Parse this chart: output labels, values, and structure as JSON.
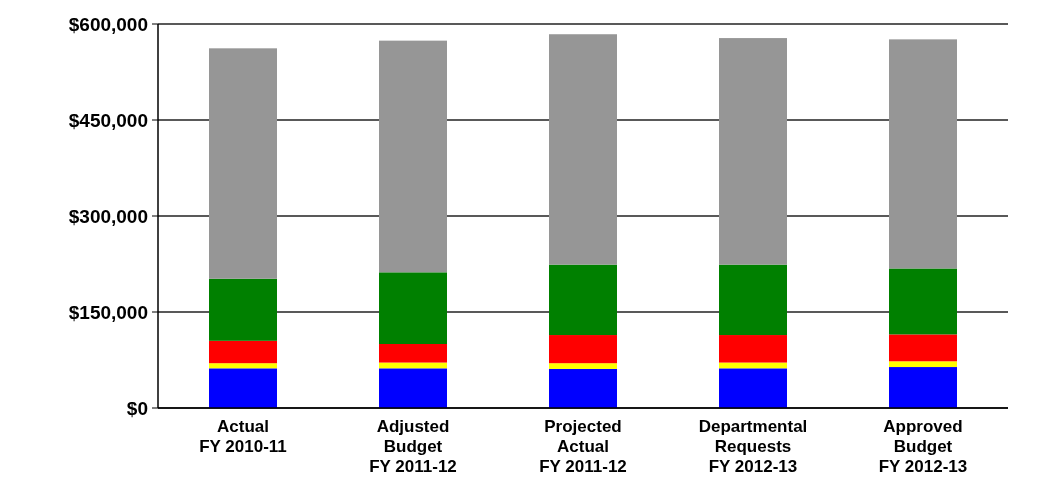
{
  "chart_data": {
    "type": "bar",
    "stacked": true,
    "categories": [
      "Actual\nFY 2010-11",
      "Adjusted\nBudget\nFY 2011-12",
      "Projected\nActual\nFY 2011-12",
      "Departmental\nRequests\nFY 2012-13",
      "Approved\nBudget\nFY 2012-13"
    ],
    "series": [
      {
        "color": "#0000ff",
        "values": [
          62000,
          62000,
          61000,
          62000,
          64000
        ]
      },
      {
        "color": "#ffff00",
        "values": [
          8000,
          9000,
          9000,
          9000,
          9000
        ]
      },
      {
        "color": "#ff0000",
        "values": [
          35000,
          29000,
          44000,
          43000,
          42000
        ]
      },
      {
        "color": "#008000",
        "values": [
          97000,
          112000,
          110000,
          110000,
          103000
        ]
      },
      {
        "color": "#969696",
        "values": [
          360000,
          362000,
          360000,
          354000,
          358000
        ]
      }
    ],
    "ylim": [
      0,
      600000
    ],
    "yticks": [
      {
        "value": 0,
        "label": "$0"
      },
      {
        "value": 150000,
        "label": "$150,000"
      },
      {
        "value": 300000,
        "label": "$300,000"
      },
      {
        "value": 450000,
        "label": "$450,000"
      },
      {
        "value": 600000,
        "label": "$600,000"
      }
    ],
    "grid": "y"
  }
}
